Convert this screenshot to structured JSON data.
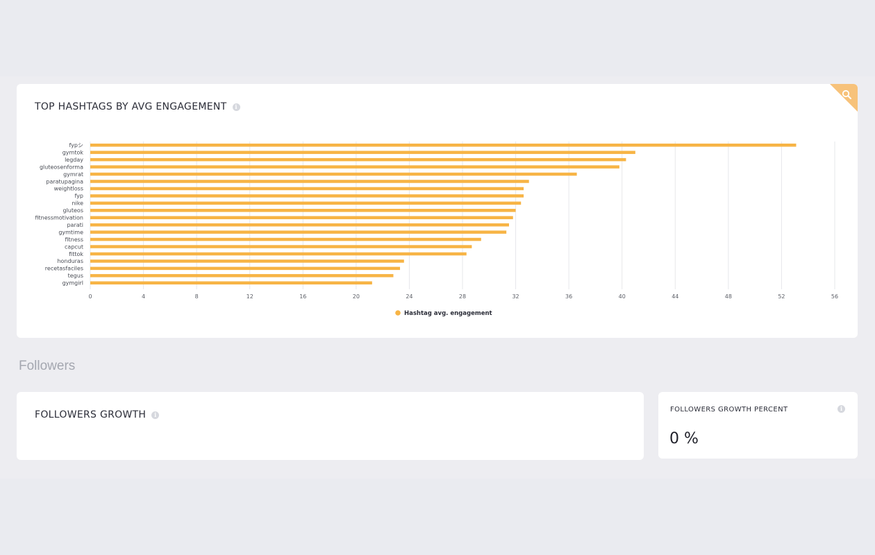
{
  "hashtags_card": {
    "title": "TOP HASHTAGS BY AVG ENGAGEMENT",
    "info_icon": "i",
    "corner_icon": "search-icon"
  },
  "chart_data": {
    "type": "bar",
    "orientation": "horizontal",
    "categories": [
      "fypシ",
      "gymtok",
      "legday",
      "gluteosenforma",
      "gymrat",
      "paratupagina",
      "weightloss",
      "fyp",
      "nike",
      "gluteos",
      "fitnessmotivation",
      "parati",
      "gymtime",
      "fitness",
      "capcut",
      "fittok",
      "honduras",
      "recetasfaciles",
      "tegus",
      "gymgirl"
    ],
    "series": [
      {
        "name": "Hashtag avg. engagement",
        "color": "#f7b445",
        "values": [
          53.1,
          41.0,
          40.3,
          39.8,
          36.6,
          33.0,
          32.6,
          32.6,
          32.4,
          32.0,
          31.8,
          31.5,
          31.3,
          29.4,
          28.7,
          28.3,
          23.6,
          23.3,
          22.8,
          21.2
        ]
      }
    ],
    "xlim": [
      0,
      56
    ],
    "xticks": [
      "0",
      "4",
      "8",
      "12",
      "16",
      "20",
      "24",
      "28",
      "32",
      "36",
      "40",
      "44",
      "48",
      "52",
      "56"
    ],
    "grid": true,
    "legend_position": "bottom-center"
  },
  "followers_section": {
    "heading": "Followers"
  },
  "followers_growth_card": {
    "title": "FOLLOWERS GROWTH",
    "info_icon": "i"
  },
  "followers_growth_percent_card": {
    "title": "FOLLOWERS GROWTH PERCENT",
    "info_icon": "i",
    "value": "0 %"
  },
  "colors": {
    "accent": "#f7b445",
    "background": "#eaebf0",
    "card": "#ffffff",
    "muted_text": "#a4a7b0"
  }
}
